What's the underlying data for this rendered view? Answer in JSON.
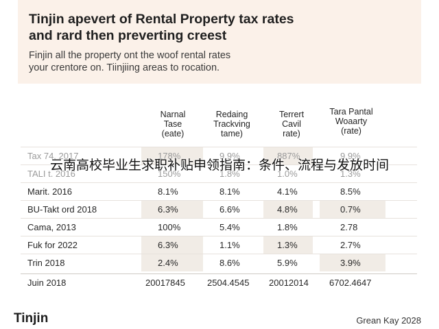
{
  "header": {
    "title_line1": "Tinjin apevert of Rental Property tax rates",
    "title_line2": "and rard then preverting creest",
    "subtitle_line1": "Finjin all the property ont the woof rental rates",
    "subtitle_line2": "your crentore on. Tiinjiing areas to rocation."
  },
  "table": {
    "columns": [
      {
        "line1": "Narnal",
        "line2": "Tase",
        "line3": "(eate)"
      },
      {
        "line1": "Redaing",
        "line2": "Trackving",
        "line3": "tame)"
      },
      {
        "line1": "Terrert",
        "line2": "Cavil",
        "line3": "rate)"
      },
      {
        "line1": "Tara Pantal",
        "line2": "Woaarty",
        "line3": "(rate)"
      }
    ],
    "rows": [
      {
        "name": "Tax 74, 2017",
        "values": [
          "178%",
          "9.9%",
          "887%",
          "9.9%"
        ]
      },
      {
        "name": "TALI t. 2016",
        "values": [
          "150%",
          "1.8%",
          "1.0%",
          "1.3%"
        ]
      },
      {
        "name": "Marit. 2016",
        "values": [
          "8.1%",
          "8.1%",
          "4.1%",
          "8.5%"
        ]
      },
      {
        "name": "BU-Takt ord 2018",
        "values": [
          "6.3%",
          "6.6%",
          "4.8%",
          "0.7%"
        ]
      },
      {
        "name": "Cama, 2013",
        "values": [
          "100%",
          "5.4%",
          "1.8%",
          "2.78"
        ]
      },
      {
        "name": "Fuk for 2022",
        "values": [
          "6.3%",
          "1.1%",
          "1.3%",
          "2.7%"
        ]
      },
      {
        "name": "Trin 2018",
        "values": [
          "2.4%",
          "8.6%",
          "5.9%",
          "3.9%"
        ]
      }
    ],
    "total": {
      "name": "Juin 2018",
      "values": [
        "20017845",
        "2504.4545",
        "20012014",
        "6702.4647"
      ]
    }
  },
  "overlay_caption": "云南高校毕业生求职补贴申领指南：条件、流程与发放时间",
  "footer": {
    "brand": "Tinjin",
    "credit": "Grean Kay 2028"
  },
  "colors": {
    "header_background": "#fbf1e9",
    "row_shade": "#f1ece6"
  }
}
